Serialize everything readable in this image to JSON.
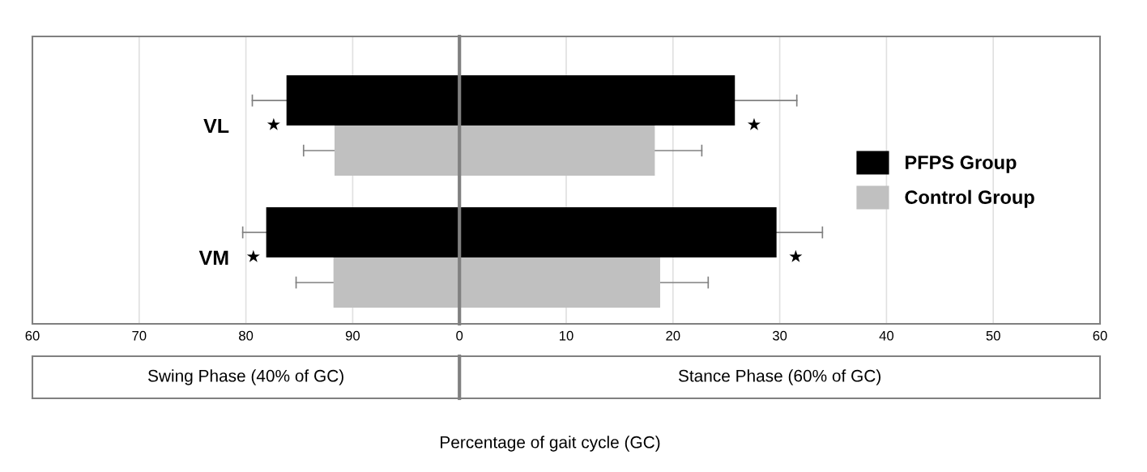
{
  "chart_data": [
    {
      "type": "bar",
      "orientation": "horizontal",
      "categories": [
        "VL",
        "VM"
      ],
      "series": [
        {
          "color": "#000000",
          "base": [
            83.8,
            81.9
          ],
          "values": [
            16.2,
            18.1
          ],
          "errors": [
            [
              80.6,
              83.8
            ],
            [
              79.7,
              81.9
            ]
          ]
        },
        {
          "color": "#c0c0c0",
          "base": [
            88.3,
            88.2
          ],
          "values": [
            11.7,
            11.8
          ],
          "errors": [
            [
              85.4,
              88.3
            ],
            [
              84.7,
              88.2
            ]
          ]
        }
      ],
      "xlim": [
        60,
        100
      ],
      "xticks": [
        60,
        70,
        80,
        90
      ],
      "annotations": [
        "★",
        "★",
        "Swing Phase (40% of GC)"
      ],
      "grid": "x"
    },
    {
      "type": "bar",
      "orientation": "horizontal",
      "xlabel": "Percentage of gait cycle (GC)",
      "categories": [
        null,
        null
      ],
      "series": [
        {
          "name": "PFPS Group",
          "color": "#000000",
          "values": [
            25.8,
            29.7
          ],
          "errors": [
            [
              25.8,
              31.6
            ],
            [
              29.7,
              34.0
            ]
          ]
        },
        {
          "name": "Control Group",
          "color": "#c0c0c0",
          "values": [
            18.3,
            18.8
          ],
          "errors": [
            [
              18.3,
              22.7
            ],
            [
              18.8,
              23.3
            ]
          ]
        }
      ],
      "xlim": [
        0,
        60
      ],
      "xticks": [
        0,
        10,
        20,
        30,
        40,
        50,
        60
      ],
      "annotations": [
        "★",
        "★",
        "Stance Phase (60% of GC)"
      ],
      "grid": "x",
      "legend": "right"
    }
  ]
}
